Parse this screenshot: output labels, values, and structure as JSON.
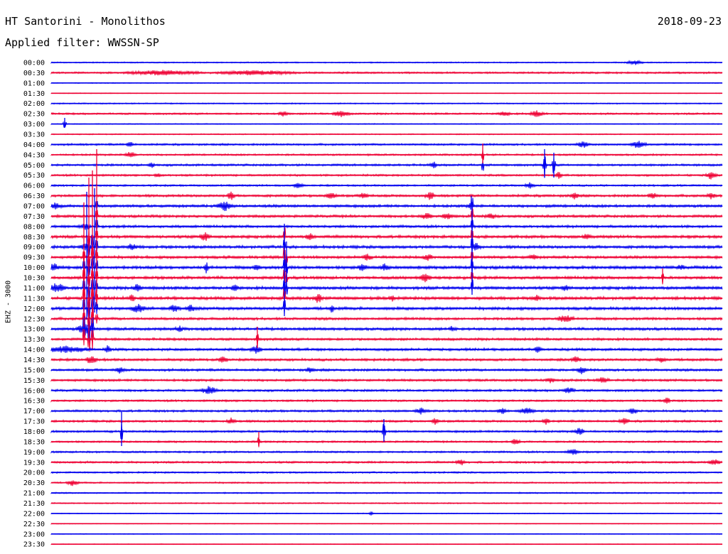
{
  "header": {
    "title": "HT Santorini - Monolithos",
    "date": "2018-09-23",
    "filter": "Applied filter: WWSSN-SP"
  },
  "chart_data": {
    "type": "line",
    "ylabel": "EHZ - 3000",
    "row_labels": [
      "00:00",
      "00:30",
      "01:00",
      "01:30",
      "02:00",
      "02:30",
      "03:00",
      "03:30",
      "04:00",
      "04:30",
      "05:00",
      "05:30",
      "06:00",
      "06:30",
      "07:00",
      "07:30",
      "08:00",
      "08:30",
      "09:00",
      "09:30",
      "10:00",
      "10:30",
      "11:00",
      "11:30",
      "12:00",
      "12:30",
      "13:00",
      "13:30",
      "14:00",
      "14:30",
      "15:00",
      "15:30",
      "16:00",
      "16:30",
      "17:00",
      "17:30",
      "18:00",
      "18:30",
      "19:00",
      "19:30",
      "20:00",
      "20:30",
      "21:00",
      "21:30",
      "22:00",
      "22:30",
      "23:00",
      "23:30"
    ],
    "trace_colors": [
      "#0000ee",
      "#ee0033"
    ],
    "noise_levels": [
      0.8,
      1.2,
      0.6,
      0.5,
      0.8,
      1.2,
      0.6,
      0.7,
      1.3,
      1.2,
      1.4,
      1.3,
      1.2,
      1.6,
      1.8,
      1.7,
      1.7,
      1.9,
      1.9,
      1.8,
      2.0,
      1.9,
      2.0,
      2.0,
      1.9,
      1.7,
      1.8,
      1.6,
      1.7,
      1.6,
      1.6,
      1.5,
      1.5,
      1.3,
      1.4,
      1.4,
      1.4,
      1.2,
      1.2,
      1.3,
      1.1,
      1.0,
      0.9,
      0.8,
      0.6,
      0.5,
      0.5,
      0.5
    ]
  }
}
